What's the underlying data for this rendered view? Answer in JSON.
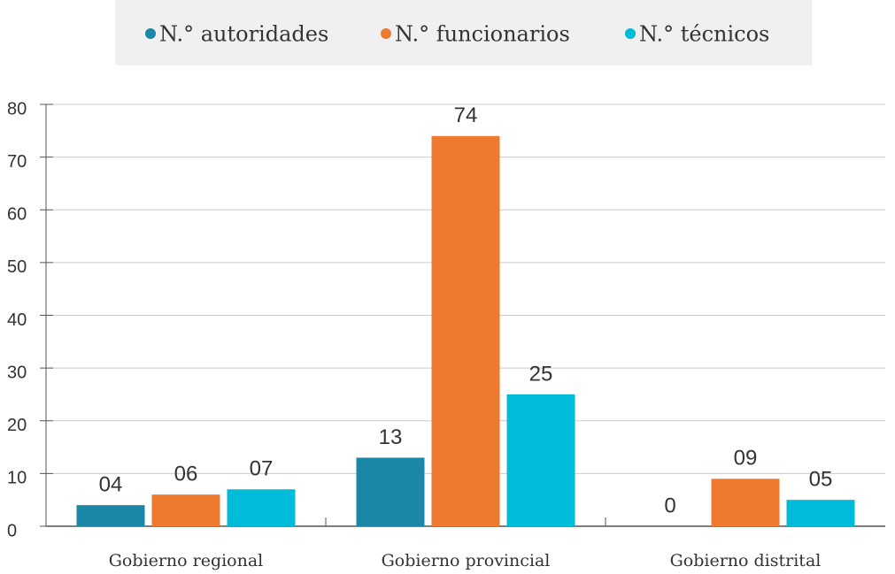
{
  "chart_data": {
    "type": "bar",
    "categories": [
      "Gobierno regional",
      "Gobierno provincial",
      "Gobierno distrital"
    ],
    "series": [
      {
        "name": "N.° autoridades",
        "color": "#1b87a6",
        "values": [
          4,
          13,
          0
        ],
        "value_labels": [
          "04",
          "13",
          "0"
        ]
      },
      {
        "name": "N.° funcionarios",
        "color": "#ee7a30",
        "values": [
          6,
          74,
          9
        ],
        "value_labels": [
          "06",
          "74",
          "09"
        ]
      },
      {
        "name": "N.° técnicos",
        "color": "#00bcd8",
        "values": [
          7,
          25,
          5
        ],
        "value_labels": [
          "07",
          "25",
          "05"
        ]
      }
    ],
    "ylim": [
      0,
      80
    ],
    "yticks": [
      0,
      10,
      20,
      30,
      40,
      50,
      60,
      70,
      80
    ],
    "grid": true,
    "legend": "top"
  }
}
